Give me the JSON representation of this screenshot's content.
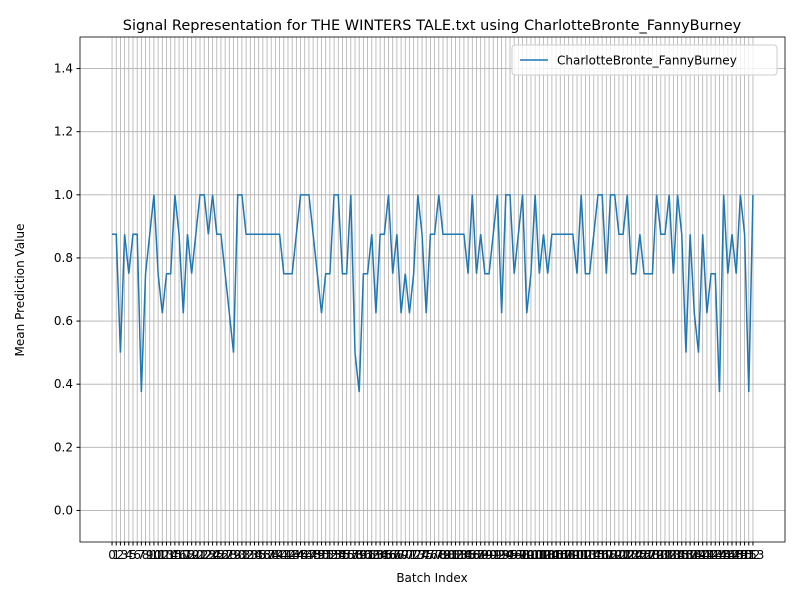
{
  "chart_data": {
    "type": "line",
    "title": "Signal Representation for THE WINTERS TALE.txt using CharlotteBronte_FannyBurney",
    "xlabel": "Batch Index",
    "ylabel": "Mean Prediction Value",
    "x": [
      0,
      1,
      2,
      3,
      4,
      5,
      6,
      7,
      8,
      9,
      10,
      11,
      12,
      13,
      14,
      15,
      16,
      17,
      18,
      19,
      20,
      21,
      22,
      23,
      24,
      25,
      26,
      27,
      28,
      29,
      30,
      31,
      32,
      33,
      34,
      35,
      36,
      37,
      38,
      39,
      40,
      41,
      42,
      43,
      44,
      45,
      46,
      47,
      48,
      49,
      50,
      51,
      52,
      53,
      54,
      55,
      56,
      57,
      58,
      59,
      60,
      61,
      62,
      63,
      64,
      65,
      66,
      67,
      68,
      69,
      70,
      71,
      72,
      73,
      74,
      75,
      76,
      77,
      78,
      79,
      80,
      81,
      82,
      83,
      84,
      85,
      86,
      87,
      88,
      89,
      90,
      91,
      92,
      93,
      94,
      95,
      96,
      97,
      98,
      99,
      100,
      101,
      102,
      103,
      104,
      105,
      106,
      107,
      108,
      109,
      110,
      111,
      112,
      113,
      114,
      115,
      116,
      117,
      118,
      119,
      120,
      121,
      122,
      123,
      124,
      125,
      126,
      127,
      128,
      129,
      130,
      131,
      132,
      133,
      134,
      135,
      136,
      137,
      138,
      139,
      140,
      141,
      142,
      143,
      144,
      145,
      146,
      147,
      148,
      149,
      150,
      151,
      152,
      153
    ],
    "series": [
      {
        "name": "CharlotteBronte_FannyBurney",
        "color": "#1f77b4",
        "values": [
          0.875,
          0.875,
          0.5,
          0.875,
          0.75,
          0.875,
          0.875,
          0.375,
          0.75,
          0.875,
          1,
          0.75,
          0.625,
          0.75,
          0.75,
          1,
          0.875,
          0.625,
          0.875,
          0.75,
          0.875,
          1,
          1,
          0.875,
          1,
          0.875,
          0.875,
          0.75,
          0.625,
          0.5,
          1,
          1,
          0.875,
          0.875,
          0.875,
          0.875,
          0.875,
          0.875,
          0.875,
          0.875,
          0.875,
          0.75,
          0.75,
          0.75,
          0.875,
          1,
          1,
          1,
          0.875,
          0.75,
          0.625,
          0.75,
          0.75,
          1,
          1,
          0.75,
          0.75,
          1,
          0.5,
          0.375,
          0.75,
          0.75,
          0.875,
          0.625,
          0.875,
          0.875,
          1,
          0.75,
          0.875,
          0.625,
          0.75,
          0.625,
          0.75,
          1,
          0.875,
          0.625,
          0.875,
          0.875,
          1,
          0.875,
          0.875,
          0.875,
          0.875,
          0.875,
          0.875,
          0.75,
          1,
          0.75,
          0.875,
          0.75,
          0.75,
          0.875,
          1,
          0.625,
          1,
          1,
          0.75,
          0.875,
          1,
          0.625,
          0.75,
          1,
          0.75,
          0.875,
          0.75,
          0.875,
          0.875,
          0.875,
          0.875,
          0.875,
          0.875,
          0.75,
          1,
          0.75,
          0.75,
          0.875,
          1,
          1,
          0.75,
          1,
          1,
          0.875,
          0.875,
          1,
          0.75,
          0.75,
          0.875,
          0.75,
          0.75,
          0.75,
          1,
          0.875,
          0.875,
          1,
          0.75,
          1,
          0.875,
          0.5,
          0.875,
          0.625,
          0.5,
          0.875,
          0.625,
          0.75,
          0.75,
          0.375,
          1,
          0.75,
          0.875,
          0.75,
          1,
          0.875,
          0.375,
          1
        ]
      }
    ],
    "xlim": [
      -7.65,
      160.65
    ],
    "xticks": [
      0,
      1,
      2,
      3,
      4,
      5,
      6,
      7,
      8,
      9,
      10,
      11,
      12,
      13,
      14,
      15,
      16,
      17,
      18,
      19,
      20,
      21,
      22,
      23,
      24,
      25,
      26,
      27,
      28,
      29,
      30,
      31,
      32,
      33,
      34,
      35,
      36,
      37,
      38,
      39,
      40,
      41,
      42,
      43,
      44,
      45,
      46,
      47,
      48,
      49,
      50,
      51,
      52,
      53,
      54,
      55,
      56,
      57,
      58,
      59,
      60,
      61,
      62,
      63,
      64,
      65,
      66,
      67,
      68,
      69,
      70,
      71,
      72,
      73,
      74,
      75,
      76,
      77,
      78,
      79,
      80,
      81,
      82,
      83,
      84,
      85,
      86,
      87,
      88,
      89,
      90,
      91,
      92,
      93,
      94,
      95,
      96,
      97,
      98,
      99,
      100,
      101,
      102,
      103,
      104,
      105,
      106,
      107,
      108,
      109,
      110,
      111,
      112,
      113,
      114,
      115,
      116,
      117,
      118,
      119,
      120,
      121,
      122,
      123,
      124,
      125,
      126,
      127,
      128,
      129,
      130,
      131,
      132,
      133,
      134,
      135,
      136,
      137,
      138,
      139,
      140,
      141,
      142,
      143,
      144,
      145,
      146,
      147,
      148,
      149,
      150,
      151,
      152,
      153
    ],
    "ylim": [
      -0.1,
      1.5
    ],
    "yticks": [
      {
        "value": 0,
        "label": "0.0"
      },
      0.2,
      0.4,
      0.6,
      0.8,
      {
        "value": 1,
        "label": "1.0"
      },
      1.2,
      1.4
    ],
    "grid": true,
    "legend": "upper right"
  }
}
